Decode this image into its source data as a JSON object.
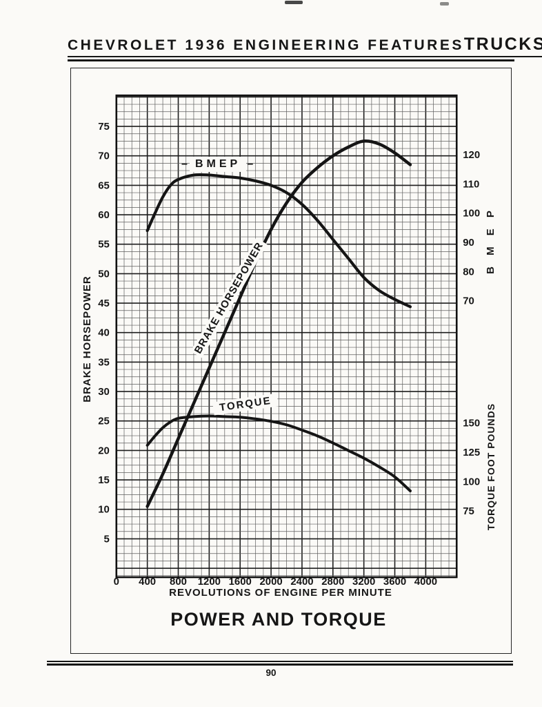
{
  "page": {
    "header": {
      "title": "CHEVROLET 1936 ENGINEERING FEATURES",
      "section": "TRUCKS"
    },
    "footer": {
      "page_number": "90"
    }
  },
  "chart_data": {
    "type": "line",
    "title": "POWER AND TORQUE",
    "xlabel": "REVOLUTIONS OF ENGINE PER MINUTE",
    "xlim": [
      0,
      4400
    ],
    "x_ticks": [
      0,
      400,
      800,
      1200,
      1600,
      2000,
      2400,
      2800,
      3200,
      3600,
      4000
    ],
    "grid": "fine graph-paper grid, heavy line every 4th division",
    "legend_position": "labels on curves",
    "axes": {
      "left": {
        "label": "BRAKE HORSEPOWER",
        "ticks": [
          5,
          10,
          15,
          20,
          25,
          30,
          35,
          40,
          45,
          50,
          55,
          60,
          65,
          70,
          75
        ],
        "range": [
          0,
          80
        ]
      },
      "right_upper": {
        "label": "B M E P",
        "ticks": [
          70,
          80,
          90,
          100,
          110,
          120
        ]
      },
      "right_lower": {
        "label": "TORQUE  FOOT POUNDS",
        "ticks": [
          75,
          100,
          125,
          150
        ]
      }
    },
    "series": [
      {
        "name": "BRAKE HORSEPOWER",
        "axis": "bhp",
        "points": [
          [
            400,
            10.5
          ],
          [
            600,
            16
          ],
          [
            800,
            22
          ],
          [
            1000,
            28
          ],
          [
            1200,
            34
          ],
          [
            1400,
            40
          ],
          [
            1600,
            46
          ],
          [
            1800,
            52
          ],
          [
            2000,
            57.5
          ],
          [
            2200,
            62
          ],
          [
            2400,
            65.5
          ],
          [
            2600,
            68
          ],
          [
            2800,
            70
          ],
          [
            3000,
            71.5
          ],
          [
            3200,
            72.5
          ],
          [
            3400,
            72
          ],
          [
            3600,
            70.5
          ],
          [
            3800,
            68.5
          ]
        ]
      },
      {
        "name": "BMEP",
        "axis": "bmep",
        "points": [
          [
            400,
            94
          ],
          [
            500,
            100
          ],
          [
            600,
            105.5
          ],
          [
            700,
            109.5
          ],
          [
            800,
            111.5
          ],
          [
            1000,
            113
          ],
          [
            1200,
            113
          ],
          [
            1400,
            112.5
          ],
          [
            1600,
            112
          ],
          [
            1800,
            111
          ],
          [
            2000,
            109.5
          ],
          [
            2200,
            107
          ],
          [
            2400,
            103
          ],
          [
            2600,
            97.5
          ],
          [
            2800,
            91
          ],
          [
            3000,
            84.5
          ],
          [
            3200,
            78
          ],
          [
            3400,
            73.5
          ],
          [
            3600,
            70.5
          ],
          [
            3800,
            68
          ]
        ]
      },
      {
        "name": "TORQUE",
        "axis": "torque",
        "points": [
          [
            400,
            131
          ],
          [
            500,
            139
          ],
          [
            600,
            146
          ],
          [
            700,
            151
          ],
          [
            800,
            154
          ],
          [
            1000,
            155.5
          ],
          [
            1200,
            156
          ],
          [
            1400,
            155.5
          ],
          [
            1600,
            155
          ],
          [
            1800,
            153.5
          ],
          [
            2000,
            151.5
          ],
          [
            2200,
            148.5
          ],
          [
            2400,
            144
          ],
          [
            2600,
            139
          ],
          [
            2800,
            133
          ],
          [
            3000,
            126.5
          ],
          [
            3200,
            120
          ],
          [
            3400,
            112.5
          ],
          [
            3600,
            104
          ],
          [
            3800,
            92
          ]
        ]
      }
    ]
  }
}
